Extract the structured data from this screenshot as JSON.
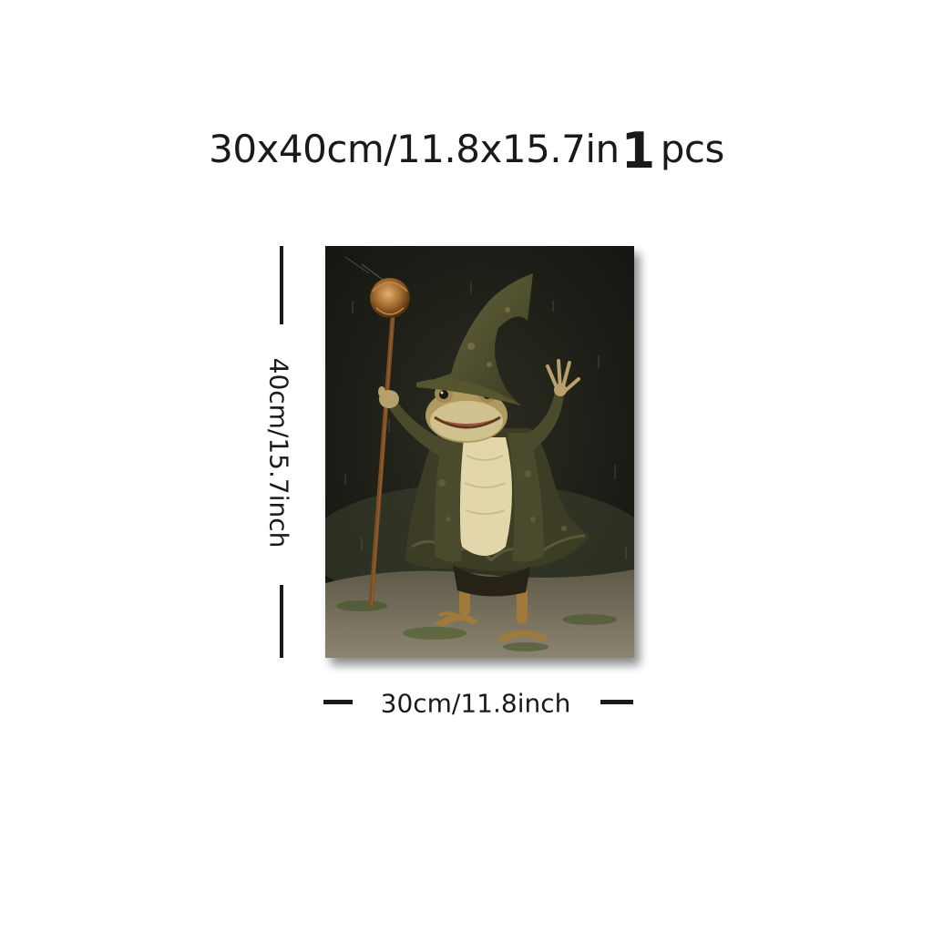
{
  "listing": {
    "size_text": "30x40cm/11.8x15.7in",
    "quantity": "1",
    "quantity_unit": "pcs"
  },
  "dimensions": {
    "height_label": "40cm/15.7inch",
    "width_label": "30cm/11.8inch"
  },
  "artwork": {
    "subject": "frog wizard with staff and pointed hat",
    "colors": {
      "background": "#1c1d16",
      "robe": "#4a4a2c",
      "skin": "#cfc28f",
      "belly": "#e7dcb4",
      "staff": "#8a5a28",
      "ground": "#7d7560"
    }
  }
}
